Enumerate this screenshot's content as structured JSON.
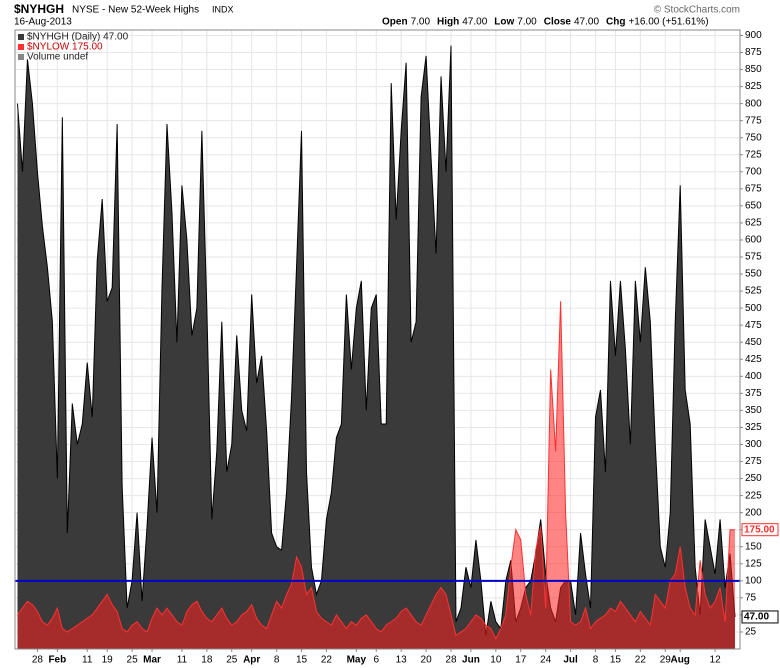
{
  "chart_data": {
    "type": "area",
    "symbol": "$NYHGH",
    "title": "NYSE - New 52-Week Highs",
    "exchange": "INDX",
    "date": "16-Aug-2013",
    "ohlc": [
      {
        "label": "Open",
        "value": "7.00"
      },
      {
        "label": "High",
        "value": "47.00"
      },
      {
        "label": "Low",
        "value": "7.00"
      },
      {
        "label": "Close",
        "value": "47.00"
      },
      {
        "label": "Chg",
        "value": "+16.00 (+51.61%)"
      }
    ],
    "copyright": "© StockCharts.com",
    "legend": [
      "$NYHGH (Daily) 47.00",
      "$NYLOW  175.00",
      "Volume undef"
    ],
    "x": [
      0,
      1,
      2,
      3,
      4,
      5,
      6,
      7,
      8,
      9,
      10,
      11,
      12,
      13,
      14,
      15,
      16,
      17,
      18,
      19,
      20,
      21,
      22,
      23,
      24,
      25,
      26,
      27,
      28,
      29,
      30,
      31,
      32,
      33,
      34,
      35,
      36,
      37,
      38,
      39,
      40,
      41,
      42,
      43,
      44,
      45,
      46,
      47,
      48,
      49,
      50,
      51,
      52,
      53,
      54,
      55,
      56,
      57,
      58,
      59,
      60,
      61,
      62,
      63,
      64,
      65,
      66,
      67,
      68,
      69,
      70,
      71,
      72,
      73,
      74,
      75,
      76,
      77,
      78,
      79,
      80,
      81,
      82,
      83,
      84,
      85,
      86,
      87,
      88,
      89,
      90,
      91,
      92,
      93,
      94,
      95,
      96,
      97,
      98,
      99,
      100,
      101,
      102,
      103,
      104,
      105,
      106,
      107,
      108,
      109,
      110,
      111,
      112,
      113,
      114,
      115,
      116,
      117,
      118,
      119,
      120,
      121,
      122,
      123,
      124,
      125,
      126,
      127,
      128,
      129,
      130,
      131,
      132,
      133,
      134,
      135,
      136,
      137,
      138,
      139,
      140,
      141,
      142,
      143,
      144
    ],
    "series": [
      {
        "name": "$NYHGH",
        "color": "#3a3a3a",
        "stroke": "#000000",
        "opacity": 1,
        "last_label": "47.00",
        "values": [
          800,
          700,
          865,
          800,
          700,
          620,
          560,
          480,
          250,
          780,
          170,
          360,
          300,
          330,
          420,
          340,
          570,
          660,
          510,
          530,
          770,
          240,
          60,
          100,
          200,
          70,
          180,
          310,
          200,
          530,
          770,
          640,
          450,
          680,
          600,
          460,
          500,
          760,
          500,
          190,
          290,
          480,
          260,
          300,
          460,
          350,
          320,
          520,
          390,
          430,
          320,
          170,
          150,
          145,
          230,
          370,
          560,
          760,
          260,
          120,
          80,
          100,
          190,
          230,
          310,
          330,
          520,
          410,
          500,
          540,
          350,
          500,
          520,
          330,
          330,
          830,
          630,
          760,
          860,
          450,
          480,
          810,
          870,
          720,
          580,
          840,
          700,
          885,
          40,
          60,
          120,
          90,
          160,
          100,
          20,
          70,
          40,
          30,
          100,
          130,
          40,
          60,
          90,
          100,
          140,
          190,
          110,
          60,
          40,
          90,
          100,
          100,
          50,
          170,
          110,
          60,
          340,
          380,
          260,
          540,
          430,
          540,
          440,
          300,
          540,
          450,
          560,
          480,
          300,
          150,
          120,
          200,
          480,
          680,
          380,
          330,
          120,
          50,
          190,
          150,
          110,
          190,
          90,
          140,
          47
        ]
      },
      {
        "name": "$NYLOW",
        "color": "#ff2020",
        "stroke": "#ff3030",
        "opacity": 0.55,
        "last_label": "175.00",
        "values": [
          50,
          60,
          70,
          65,
          55,
          40,
          35,
          45,
          60,
          30,
          25,
          30,
          35,
          40,
          45,
          50,
          60,
          70,
          80,
          65,
          55,
          30,
          25,
          35,
          40,
          30,
          25,
          45,
          60,
          50,
          60,
          50,
          40,
          35,
          55,
          65,
          70,
          55,
          45,
          40,
          50,
          60,
          45,
          35,
          40,
          50,
          55,
          65,
          45,
          35,
          30,
          50,
          70,
          60,
          80,
          95,
          135,
          120,
          80,
          90,
          55,
          45,
          40,
          35,
          50,
          40,
          30,
          40,
          35,
          45,
          50,
          40,
          30,
          25,
          35,
          40,
          45,
          55,
          60,
          50,
          40,
          35,
          50,
          65,
          80,
          90,
          80,
          50,
          20,
          25,
          30,
          40,
          50,
          45,
          35,
          30,
          15,
          30,
          50,
          120,
          175,
          160,
          80,
          50,
          145,
          180,
          60,
          410,
          290,
          510,
          200,
          40,
          35,
          40,
          60,
          30,
          40,
          45,
          50,
          60,
          55,
          70,
          60,
          50,
          40,
          55,
          45,
          35,
          80,
          70,
          60,
          100,
          110,
          150,
          90,
          60,
          50,
          130,
          80,
          60,
          70,
          90,
          40,
          175,
          175
        ]
      }
    ],
    "reference_line": {
      "value": 100,
      "color": "#0000cc"
    },
    "xlim": [
      -0.5,
      145
    ],
    "xticks": [
      {
        "value": 4,
        "label": "28"
      },
      {
        "value": 8,
        "label": "Feb"
      },
      {
        "value": 14,
        "label": "11"
      },
      {
        "value": 18,
        "label": "19"
      },
      {
        "value": 23,
        "label": "25"
      },
      {
        "value": 27,
        "label": "Mar"
      },
      {
        "value": 33,
        "label": "11"
      },
      {
        "value": 38,
        "label": "18"
      },
      {
        "value": 43,
        "label": "25"
      },
      {
        "value": 47,
        "label": "Apr"
      },
      {
        "value": 52,
        "label": "8"
      },
      {
        "value": 57,
        "label": "15"
      },
      {
        "value": 62,
        "label": "22"
      },
      {
        "value": 68,
        "label": "May"
      },
      {
        "value": 72,
        "label": "6"
      },
      {
        "value": 77,
        "label": "13"
      },
      {
        "value": 82,
        "label": "20"
      },
      {
        "value": 87,
        "label": "28"
      },
      {
        "value": 91,
        "label": "Jun"
      },
      {
        "value": 96,
        "label": "10"
      },
      {
        "value": 101,
        "label": "17"
      },
      {
        "value": 106,
        "label": "24"
      },
      {
        "value": 111,
        "label": "Jul"
      },
      {
        "value": 116,
        "label": "8"
      },
      {
        "value": 120,
        "label": "15"
      },
      {
        "value": 125,
        "label": "22"
      },
      {
        "value": 130,
        "label": "29"
      },
      {
        "value": 133,
        "label": "Aug"
      },
      {
        "value": 140,
        "label": "12"
      }
    ],
    "ylim": [
      0,
      908
    ],
    "yticks": [
      25,
      50,
      75,
      100,
      125,
      150,
      175,
      200,
      225,
      250,
      275,
      300,
      325,
      350,
      375,
      400,
      425,
      450,
      475,
      500,
      525,
      550,
      575,
      600,
      625,
      650,
      675,
      700,
      725,
      750,
      775,
      800,
      825,
      850,
      875,
      900
    ],
    "grid": true
  }
}
